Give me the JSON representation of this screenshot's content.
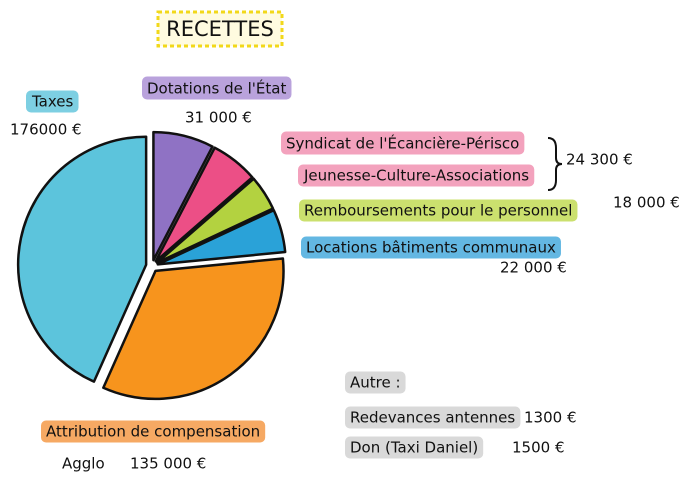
{
  "chart_data": {
    "type": "pie",
    "title": "RECETTES",
    "categories": [
      "Dotations de l'État",
      "Syndicat de l'Écancière-Périsco",
      "Remboursements pour le personnel",
      "Locations bâtiments communaux",
      "Attribution de compensation",
      "Taxes"
    ],
    "values": [
      31000,
      24300,
      18000,
      22000,
      135000,
      176000
    ],
    "value_labels": [
      "31 000 €",
      "24 300 €",
      "18 000 €",
      "22 000 €",
      "135 000 €",
      "176000 €"
    ],
    "colors": [
      "#8f72c4",
      "#ec4f86",
      "#b3d240",
      "#2aa2d8",
      "#f7941d",
      "#5cc4dc"
    ],
    "annotations": [
      "Jeunesse-Culture-Associations",
      "Agglo"
    ],
    "other": {
      "title": "Autre :",
      "items": [
        {
          "label": "Redevances antennes",
          "value": 1300,
          "value_label": "1300 €"
        },
        {
          "label": "Don (Taxi Daniel)",
          "value": 1500,
          "value_label": "1500 €"
        }
      ]
    }
  }
}
